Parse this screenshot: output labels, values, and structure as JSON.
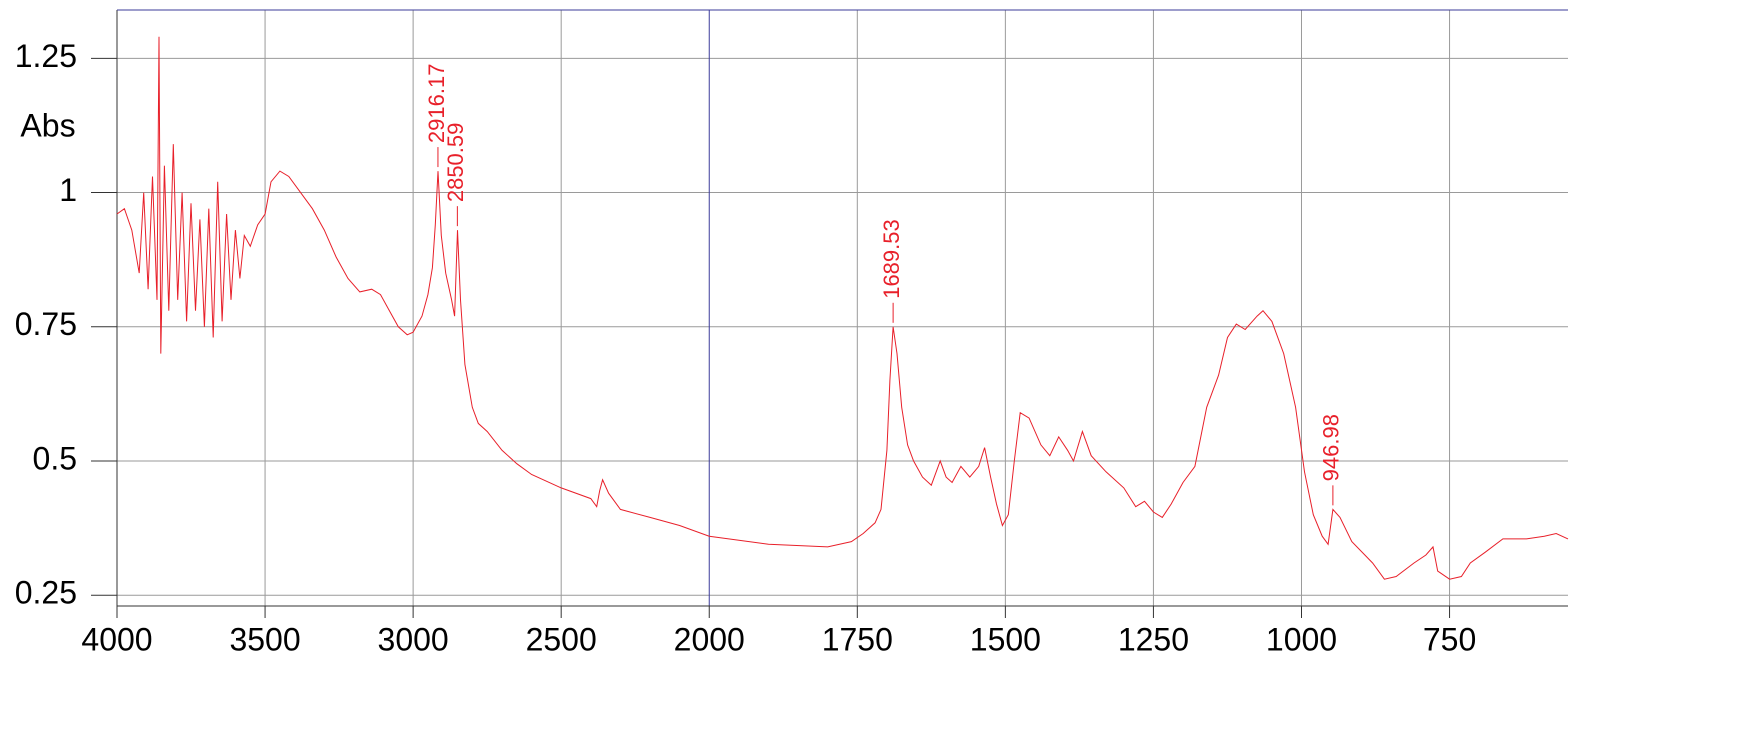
{
  "chart_data": {
    "type": "line",
    "y_label": "Abs",
    "color": "#e8202a",
    "grid": true,
    "xbreak": 2000,
    "xbreak_factor": 2,
    "xlim": [
      4000,
      550
    ],
    "ylim": [
      0.23,
      1.34
    ],
    "xticks": [
      4000,
      3500,
      3000,
      2500,
      2000,
      1750,
      1500,
      1250,
      1000,
      750
    ],
    "yticks": [
      0.25,
      0.5,
      0.75,
      1,
      1.25
    ],
    "peaks": [
      {
        "x": 2916.17,
        "y": 1.04
      },
      {
        "x": 2850.59,
        "y": 0.93
      },
      {
        "x": 1689.53,
        "y": 0.75
      },
      {
        "x": 946.98,
        "y": 0.41
      }
    ],
    "x": [
      4000,
      3975,
      3950,
      3925,
      3910,
      3895,
      3880,
      3865,
      3858,
      3852,
      3840,
      3825,
      3810,
      3795,
      3780,
      3765,
      3750,
      3735,
      3720,
      3705,
      3690,
      3675,
      3660,
      3645,
      3630,
      3615,
      3600,
      3585,
      3570,
      3550,
      3525,
      3500,
      3480,
      3450,
      3420,
      3380,
      3340,
      3300,
      3260,
      3220,
      3180,
      3140,
      3110,
      3080,
      3050,
      3020,
      3000,
      2970,
      2950,
      2935,
      2925,
      2916,
      2905,
      2890,
      2870,
      2860,
      2850,
      2840,
      2825,
      2800,
      2780,
      2750,
      2700,
      2650,
      2600,
      2500,
      2400,
      2380,
      2370,
      2360,
      2340,
      2300,
      2200,
      2100,
      2000,
      1900,
      1800,
      1760,
      1740,
      1720,
      1710,
      1700,
      1695,
      1689.5,
      1683,
      1675,
      1665,
      1655,
      1640,
      1625,
      1610,
      1600,
      1590,
      1575,
      1560,
      1545,
      1535,
      1525,
      1515,
      1505,
      1495,
      1485,
      1475,
      1460,
      1440,
      1425,
      1410,
      1395,
      1385,
      1370,
      1355,
      1330,
      1300,
      1280,
      1265,
      1250,
      1235,
      1220,
      1200,
      1180,
      1160,
      1140,
      1125,
      1110,
      1095,
      1075,
      1065,
      1050,
      1030,
      1010,
      995,
      980,
      965,
      955,
      947,
      935,
      915,
      880,
      860,
      840,
      810,
      790,
      778,
      770,
      750,
      730,
      715,
      690,
      660,
      620,
      590,
      570,
      550
    ],
    "values": [
      0.96,
      0.97,
      0.93,
      0.85,
      1.0,
      0.82,
      1.03,
      0.8,
      1.29,
      0.7,
      1.05,
      0.78,
      1.09,
      0.8,
      1.0,
      0.76,
      0.98,
      0.78,
      0.95,
      0.75,
      0.97,
      0.73,
      1.02,
      0.76,
      0.96,
      0.8,
      0.93,
      0.84,
      0.92,
      0.9,
      0.94,
      0.96,
      1.02,
      1.04,
      1.03,
      1.0,
      0.97,
      0.93,
      0.88,
      0.84,
      0.815,
      0.82,
      0.81,
      0.78,
      0.75,
      0.735,
      0.74,
      0.77,
      0.81,
      0.86,
      0.94,
      1.04,
      0.92,
      0.85,
      0.8,
      0.77,
      0.93,
      0.8,
      0.68,
      0.6,
      0.57,
      0.555,
      0.52,
      0.495,
      0.475,
      0.45,
      0.43,
      0.415,
      0.445,
      0.465,
      0.44,
      0.41,
      0.395,
      0.38,
      0.36,
      0.345,
      0.34,
      0.35,
      0.365,
      0.385,
      0.41,
      0.52,
      0.65,
      0.75,
      0.7,
      0.6,
      0.53,
      0.5,
      0.47,
      0.455,
      0.5,
      0.47,
      0.46,
      0.49,
      0.47,
      0.49,
      0.525,
      0.47,
      0.42,
      0.38,
      0.4,
      0.5,
      0.59,
      0.58,
      0.53,
      0.51,
      0.545,
      0.52,
      0.5,
      0.555,
      0.51,
      0.48,
      0.45,
      0.415,
      0.425,
      0.405,
      0.395,
      0.42,
      0.46,
      0.49,
      0.6,
      0.66,
      0.73,
      0.755,
      0.745,
      0.77,
      0.78,
      0.76,
      0.7,
      0.6,
      0.48,
      0.4,
      0.36,
      0.345,
      0.41,
      0.395,
      0.35,
      0.31,
      0.28,
      0.285,
      0.31,
      0.325,
      0.34,
      0.295,
      0.28,
      0.285,
      0.31,
      0.33,
      0.355,
      0.355,
      0.36,
      0.365,
      0.355
    ]
  }
}
